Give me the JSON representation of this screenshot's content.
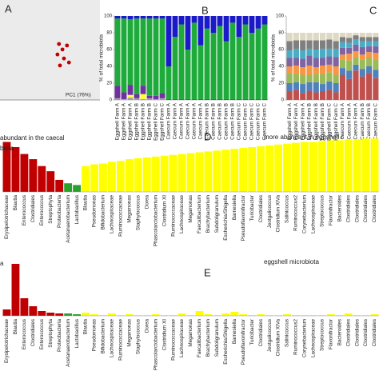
{
  "chart_data": [
    {
      "type": "scatter",
      "label": "A",
      "xlabel": "PC1 (76%)",
      "x": [
        0.18,
        0.34,
        0.25,
        0.15,
        0.28,
        0.38,
        0.2
      ],
      "y": [
        0.12,
        0.09,
        0.01,
        -0.09,
        -0.17,
        -0.25,
        -0.31
      ],
      "xlim": [
        -1,
        1
      ],
      "ylim": [
        -1,
        1
      ],
      "color": "#c00000"
    },
    {
      "type": "stacked_bar",
      "label": "B",
      "ylabel": "% of total microbiota",
      "categories": [
        "Eggshell Farm A",
        "Eggshell Farm A",
        "Eggshell Farm A",
        "Eggshell Farm B",
        "Eggshell Farm B",
        "Eggshell Farm B",
        "Eggshell Farm C",
        "Eggshell Farm C",
        "Caecum Farm A",
        "Caecum Farm A",
        "Caecum Farm A",
        "Caecum Farm A",
        "Caecum Farm A",
        "Caecum Farm A",
        "Caecum Farm B",
        "Caecum Farm B",
        "Caecum Farm B",
        "Caecum Farm B",
        "Caecum Farm B",
        "Caecum Farm C",
        "Caecum Farm C",
        "Caecum Farm C",
        "Caecum Farm C",
        "Caecum Farm C"
      ],
      "series": [
        {
          "color": "#a6a6a6",
          "values": [
            2,
            1,
            3,
            2,
            1,
            2,
            1,
            2,
            0,
            0,
            0,
            0,
            0,
            0,
            0,
            0,
            0,
            0,
            0,
            0,
            0,
            0,
            0,
            0
          ]
        },
        {
          "color": "#ffff33",
          "values": [
            0,
            0,
            3,
            0,
            6,
            0,
            0,
            0,
            0,
            0,
            0,
            0,
            0,
            0,
            0,
            0,
            0,
            0,
            0,
            0,
            0,
            0,
            0,
            0
          ]
        },
        {
          "color": "#7030a0",
          "values": [
            15,
            8,
            12,
            5,
            10,
            3,
            4,
            6,
            1,
            1,
            1,
            1,
            1,
            1,
            1,
            1,
            1,
            1,
            1,
            1,
            1,
            1,
            1,
            1
          ]
        },
        {
          "color": "#1faa3c",
          "values": [
            80,
            88,
            78,
            90,
            80,
            92,
            92,
            89,
            39,
            74,
            89,
            59,
            91,
            64,
            84,
            79,
            87,
            69,
            91,
            74,
            89,
            79,
            84,
            89
          ]
        },
        {
          "color": "#1a1ac8",
          "values": [
            3,
            3,
            4,
            3,
            3,
            3,
            3,
            3,
            60,
            25,
            10,
            40,
            8,
            35,
            15,
            20,
            12,
            30,
            8,
            25,
            10,
            20,
            15,
            10
          ]
        }
      ],
      "ylim": [
        0,
        100
      ],
      "yticks": [
        0,
        20,
        40,
        60,
        80,
        100
      ]
    },
    {
      "type": "stacked_bar",
      "label": "C",
      "ylabel": "% of total microbiota",
      "categories": [
        "Eggshell Farm A",
        "Eggshell Farm A",
        "Eggshell Farm A",
        "Eggshell Farm B",
        "Eggshell Farm B",
        "Eggshell Farm B",
        "Eggshell Farm C",
        "Eggshell Farm C",
        "Caecum Farm A",
        "Caecum Farm A",
        "Caecum Farm A",
        "Caecum Farm B",
        "Caecum Farm B",
        "Caecum Farm C"
      ],
      "series": [
        {
          "color": "#c0504d",
          "values": [
            10,
            12,
            8,
            11,
            9,
            10,
            12,
            9,
            30,
            25,
            35,
            28,
            32,
            26
          ]
        },
        {
          "color": "#4f81bd",
          "values": [
            10,
            9,
            11,
            10,
            12,
            9,
            10,
            11,
            8,
            10,
            7,
            9,
            8,
            10
          ]
        },
        {
          "color": "#9bbb59",
          "values": [
            12,
            10,
            11,
            9,
            10,
            12,
            11,
            10,
            10,
            12,
            9,
            11,
            10,
            12
          ]
        },
        {
          "color": "#f79646",
          "values": [
            8,
            10,
            9,
            11,
            8,
            10,
            9,
            10,
            6,
            8,
            7,
            6,
            7,
            8
          ]
        },
        {
          "color": "#8064a2",
          "values": [
            10,
            9,
            10,
            12,
            11,
            9,
            10,
            11,
            8,
            7,
            8,
            9,
            7,
            8
          ]
        },
        {
          "color": "#4bacc6",
          "values": [
            9,
            11,
            10,
            8,
            10,
            11,
            9,
            10,
            7,
            6,
            6,
            7,
            6,
            6
          ]
        },
        {
          "color": "#7f7f7f",
          "values": [
            11,
            10,
            12,
            10,
            11,
            10,
            11,
            9,
            6,
            6,
            5,
            5,
            5,
            5
          ]
        },
        {
          "color": "#ddd9c3",
          "values": [
            10,
            9,
            9,
            9,
            9,
            9,
            8,
            10,
            5,
            6,
            3,
            5,
            5,
            5
          ]
        }
      ],
      "ylim": [
        0,
        100
      ],
      "yticks": [
        0,
        20,
        40,
        60,
        80,
        100
      ]
    },
    {
      "type": "bar",
      "label": "D",
      "annotations": [
        "abundant in the caecal",
        "biota",
        "more abundant in eggshell r"
      ],
      "categories": [
        "Erysipelotrichaceae",
        "Blautia",
        "Enterococcus",
        "Clostridiales",
        "Enterococcus",
        "Streptophyta",
        "Proteobacteria",
        "Acetanaerobacterium",
        "Lactobacillus",
        "Blautia",
        "Pseudomonas",
        "Bifidobacterium",
        "Lachnospiraceae",
        "Ruminococcaceae",
        "Megamonas",
        "Staphylococcus",
        "Dorea",
        "Phascolarctobacterium",
        "Clostridium XI",
        "Ruminococcaceae",
        "Lachnospiraceae",
        "Megamonas",
        "Faecalibacterium",
        "Brachybacterium",
        "Subdoligranulum",
        "Escherichia/Shigella",
        "Barnesiella",
        "Pseudoflavonifractor",
        "Turicibacter",
        "Clostridiales",
        "Jeotgalicoccus",
        "Clostridium XIVa",
        "Salinicoccus",
        "Ruminococcus2",
        "Corynebacterium",
        "Lachnospiraceae",
        "Streptococcus",
        "Flavonifractor",
        "Bacteroides",
        "Clostridiales",
        "Clostridiales",
        "Clostridiales",
        "Clostridiales"
      ],
      "values": [
        58,
        52,
        44,
        38,
        30,
        24,
        14,
        10,
        8,
        30,
        32,
        33,
        35,
        36,
        38,
        39,
        40,
        41,
        42,
        43,
        44,
        45,
        46,
        47,
        48,
        49,
        50,
        51,
        52,
        53,
        54,
        55,
        56,
        57,
        58,
        58,
        59,
        60,
        60,
        61,
        61,
        62,
        62
      ],
      "colors": [
        "#c00000",
        "#c00000",
        "#c00000",
        "#c00000",
        "#c00000",
        "#c00000",
        "#c00000",
        "#2ca02c",
        "#2ca02c",
        "#ffff00",
        "#ffff00",
        "#ffff00",
        "#ffff00",
        "#ffff00",
        "#ffff00",
        "#ffff00",
        "#ffff00",
        "#ffff00",
        "#ffff00",
        "#ffff00",
        "#ffff00",
        "#ffff00",
        "#ffff00",
        "#ffff00",
        "#ffff00",
        "#ffff00",
        "#ffff00",
        "#ffff00",
        "#ffff00",
        "#ffff00",
        "#ffff00",
        "#ffff00",
        "#ffff00",
        "#ffff00",
        "#ffff00",
        "#ffff00",
        "#ffff00",
        "#ffff00",
        "#ffff00",
        "#ffff00",
        "#ffff00",
        "#ffff00",
        "#ffff00"
      ],
      "ylim": [
        0,
        65
      ]
    },
    {
      "type": "bar",
      "label": "E",
      "annotations": [
        "a",
        "eggshell microbiota"
      ],
      "categories": [
        "Erysipelotrichaceae",
        "Blautia",
        "Enterococcus",
        "Clostridiales",
        "Enterococcus",
        "Streptophyta",
        "Proteobacteria",
        "Acetanaerobacterium",
        "Lactobacillus",
        "Blautia",
        "Pseudomonas",
        "Bifidobacterium",
        "Lachnospiraceae",
        "Ruminococcaceae",
        "Megamonas",
        "Staphylococcus",
        "Dorea",
        "Phascolarctobacterium",
        "Clostridium XI",
        "Ruminococcaceae",
        "Lachnospiraceae",
        "Megamonas",
        "Faecalibacterium",
        "Brachybacterium",
        "Subdoligranulum",
        "Escherichia/Shigella",
        "Barnesiella",
        "Pseudoflavonifractor",
        "Turicibacter",
        "Clostridiales",
        "Jeotgalicoccus",
        "Clostridium XIVa",
        "Salinicoccus",
        "Ruminococcus2",
        "Corynebacterium",
        "Lachnospiraceae",
        "Streptococcus",
        "Flavonifractor",
        "Bacteroides",
        "Clostridiales",
        "Clostridiales",
        "Clostridiales",
        "Clostridiales"
      ],
      "values": [
        8,
        65,
        22,
        12,
        6,
        4,
        3,
        3,
        2,
        4,
        2,
        1,
        3,
        1,
        2,
        1,
        1,
        2,
        1,
        1,
        3,
        1,
        6,
        2,
        1,
        3,
        5,
        2,
        1,
        2,
        1,
        1,
        2,
        1,
        1,
        1,
        1,
        2,
        1,
        3,
        1,
        1,
        2
      ],
      "colors": [
        "#c00000",
        "#c00000",
        "#c00000",
        "#c00000",
        "#c00000",
        "#c00000",
        "#c00000",
        "#2ca02c",
        "#2ca02c",
        "#ffff00",
        "#ffff00",
        "#ffff00",
        "#ffff00",
        "#ffff00",
        "#ffff00",
        "#ffff00",
        "#ffff00",
        "#ffff00",
        "#ffff00",
        "#ffff00",
        "#ffff00",
        "#ffff00",
        "#ffff00",
        "#ffff00",
        "#ffff00",
        "#ffff00",
        "#ffff00",
        "#ffff00",
        "#ffff00",
        "#ffff00",
        "#ffff00",
        "#ffff00",
        "#ffff00",
        "#ffff00",
        "#ffff00",
        "#ffff00",
        "#ffff00",
        "#ffff00",
        "#ffff00",
        "#ffff00",
        "#ffff00",
        "#ffff00",
        "#ffff00"
      ],
      "ylim": [
        0,
        70
      ]
    }
  ]
}
